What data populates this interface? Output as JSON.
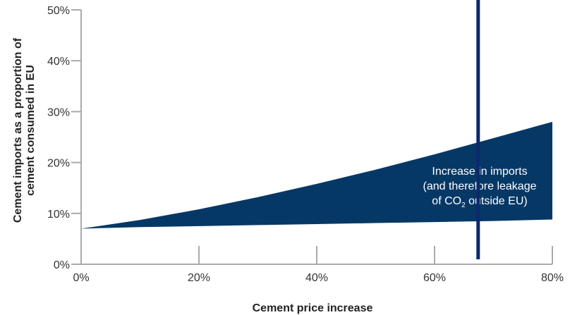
{
  "chart_data": {
    "type": "area-band",
    "y_label_lines": [
      "Cement imports as a proportion of",
      "cement consumed in EU"
    ],
    "x_label": "Cement price increase",
    "x": [
      0,
      10,
      20,
      30,
      40,
      50,
      60,
      70,
      80
    ],
    "series": [
      {
        "color": "#063866",
        "values": [
          7,
          8.7,
          10.8,
          13.2,
          15.8,
          18.6,
          21.6,
          24.8,
          28
        ]
      },
      {
        "color": "#063866",
        "values": [
          7,
          7.3,
          7.5,
          7.7,
          7.9,
          8.1,
          8.3,
          8.5,
          8.8
        ]
      }
    ],
    "xlim": [
      0,
      80
    ],
    "ylim": [
      0,
      50
    ],
    "xticks": [
      {
        "value": 0,
        "label": "0%"
      },
      {
        "value": 20,
        "label": "20%"
      },
      {
        "value": 40,
        "label": "40%"
      },
      {
        "value": 60,
        "label": "60%"
      },
      {
        "value": 80,
        "label": "80%"
      }
    ],
    "yticks": [
      {
        "value": 0,
        "label": "0%"
      },
      {
        "value": 10,
        "label": "10%"
      },
      {
        "value": 20,
        "label": "20%"
      },
      {
        "value": 30,
        "label": "30%"
      },
      {
        "value": 40,
        "label": "40%"
      },
      {
        "value": 50,
        "label": "50%"
      }
    ],
    "marker_x": 67.4,
    "marker_color": "#0a2a6b",
    "annotation": {
      "lines": [
        "Increase in imports",
        "(and therefore leakage"
      ],
      "line3": [
        "of CO",
        "2",
        " outside EU)"
      ]
    }
  }
}
